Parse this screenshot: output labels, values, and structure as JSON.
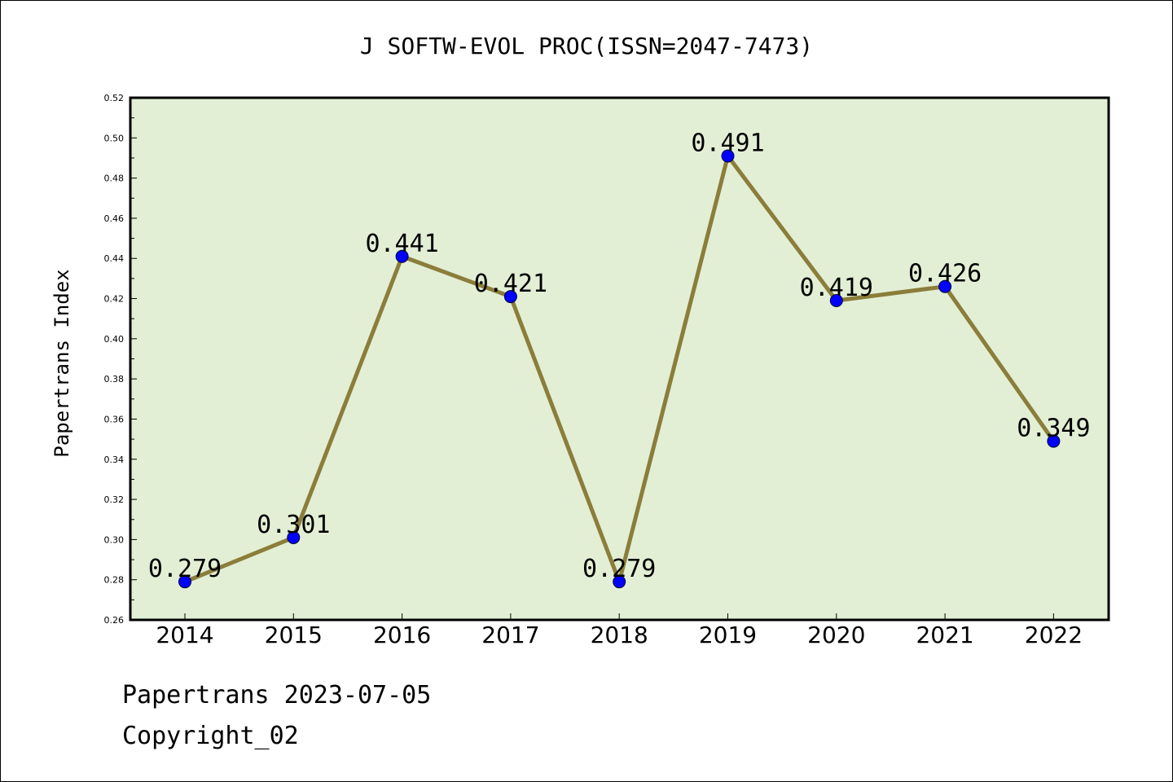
{
  "footer": {
    "line1": "Papertrans 2023-07-05",
    "line2": "Copyright_02"
  },
  "colors": {
    "plot_bg": "#e2efd5",
    "line": "#8b7d3a",
    "marker": "#0000ff",
    "frame": "#000000"
  },
  "chart_data": {
    "type": "line",
    "title": "J SOFTW-EVOL PROC(ISSN=2047-7473)",
    "xlabel": "",
    "ylabel": "Papertrans Index",
    "categories": [
      "2014",
      "2015",
      "2016",
      "2017",
      "2018",
      "2019",
      "2020",
      "2021",
      "2022"
    ],
    "series": [
      {
        "values": [
          0.279,
          0.301,
          0.441,
          0.421,
          0.279,
          0.491,
          0.419,
          0.426,
          0.349
        ],
        "labels": [
          "0.279",
          "0.301",
          "0.441",
          "0.421",
          "0.279",
          "0.491",
          "0.419",
          "0.426",
          "0.349"
        ]
      }
    ],
    "ylim": [
      0.26,
      0.52
    ],
    "yticks": [
      "0.26",
      "0.28",
      "0.30",
      "0.32",
      "0.34",
      "0.36",
      "0.38",
      "0.40",
      "0.42",
      "0.44",
      "0.46",
      "0.48",
      "0.50",
      "0.52"
    ],
    "grid": false,
    "legend": "none"
  }
}
